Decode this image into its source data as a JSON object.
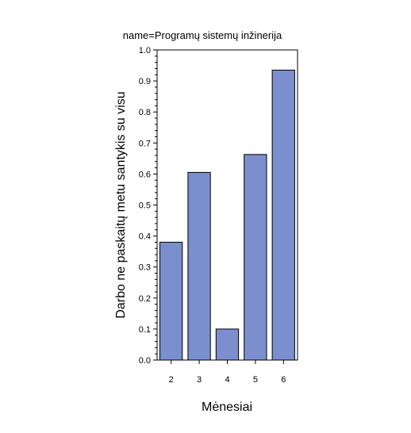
{
  "chart_data": {
    "type": "bar",
    "title": "name=Programų sistemų inžinerija",
    "xlabel": "Mėnesiai",
    "ylabel": "Darbo ne paskaitų metu santykis su visu",
    "categories": [
      "2",
      "3",
      "4",
      "5",
      "6"
    ],
    "values": [
      0.38,
      0.605,
      0.1,
      0.663,
      0.935
    ],
    "ylim": [
      0.0,
      1.0
    ],
    "yticks": [
      "0.0",
      "0.1",
      "0.2",
      "0.3",
      "0.4",
      "0.5",
      "0.6",
      "0.7",
      "0.8",
      "0.9",
      "1.0"
    ],
    "grid": false,
    "bar_color": "#7b8fcf",
    "bar_edge_color": "#000000"
  }
}
